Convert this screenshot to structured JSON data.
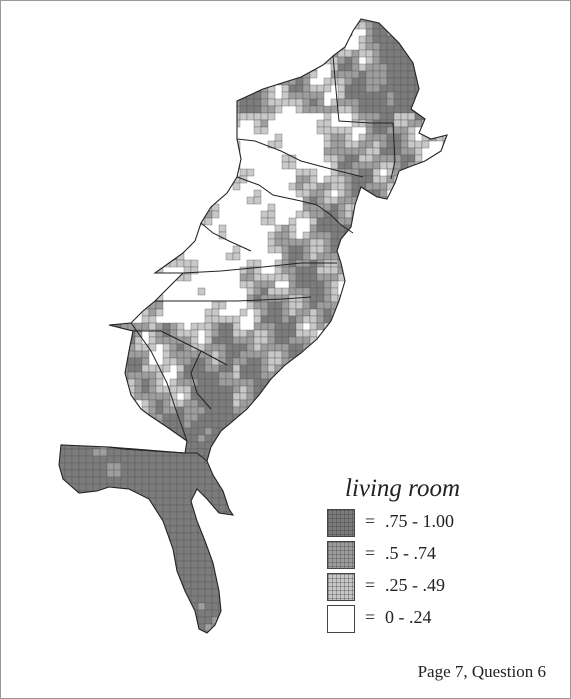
{
  "legend": {
    "title": "living room",
    "items": [
      {
        "equals": "=",
        "range": ".75 - 1.00",
        "color": "#7c7c7c"
      },
      {
        "equals": "=",
        "range": ".5 - .74",
        "color": "#9e9e9e"
      },
      {
        "equals": "=",
        "range": ".25 - .49",
        "color": "#c8c8c8"
      },
      {
        "equals": "=",
        "range": "0 - .24",
        "color": "#ffffff"
      }
    ]
  },
  "footer": {
    "text": "Page 7, Question 6"
  },
  "colors": {
    "border": "#9a9a9a",
    "outline": "#222222",
    "cell_grid": "#555555"
  }
}
